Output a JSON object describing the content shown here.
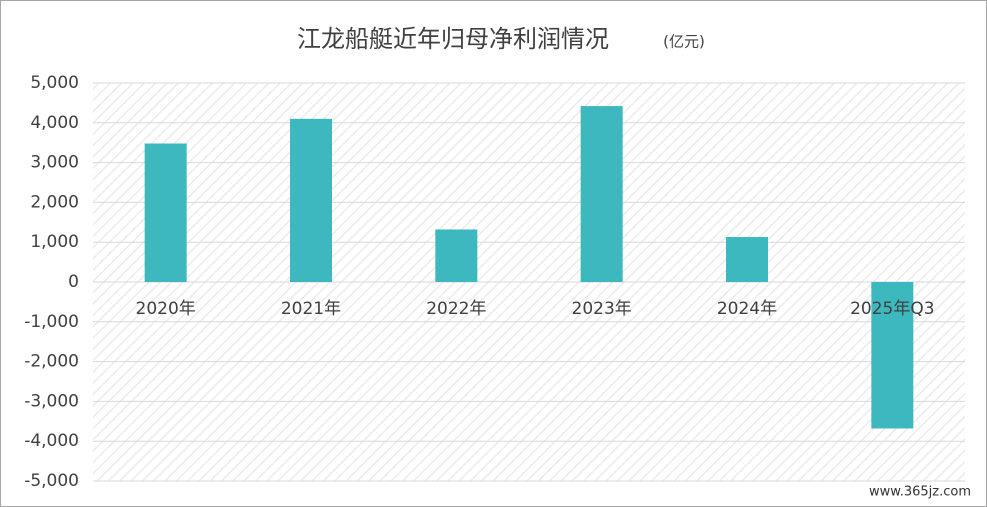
{
  "chart_data": {
    "type": "bar",
    "title": "江龙船艇近年归母净利润情况",
    "subtitle": "(亿元)",
    "categories": [
      "2020年",
      "2021年",
      "2022年",
      "2023年",
      "2024年",
      "2025年Q3"
    ],
    "values": [
      3480,
      4100,
      1320,
      4420,
      1130,
      -3680
    ],
    "color": "#3eb8bf",
    "ylim": [
      -5000,
      5000
    ],
    "yticks": [
      {
        "value": -5000,
        "label": "-5,000"
      },
      {
        "value": -4000,
        "label": "-4,000"
      },
      {
        "value": -3000,
        "label": "-3,000"
      },
      {
        "value": -2000,
        "label": "-2,000"
      },
      {
        "value": -1000,
        "label": "-1,000"
      },
      0,
      {
        "value": 1000,
        "label": "1,000"
      },
      {
        "value": 2000,
        "label": "2,000"
      },
      {
        "value": 3000,
        "label": "3,000"
      },
      {
        "value": 4000,
        "label": "4,000"
      },
      {
        "value": 5000,
        "label": "5,000"
      }
    ],
    "grid": true,
    "watermark": "www.365jz.com"
  }
}
